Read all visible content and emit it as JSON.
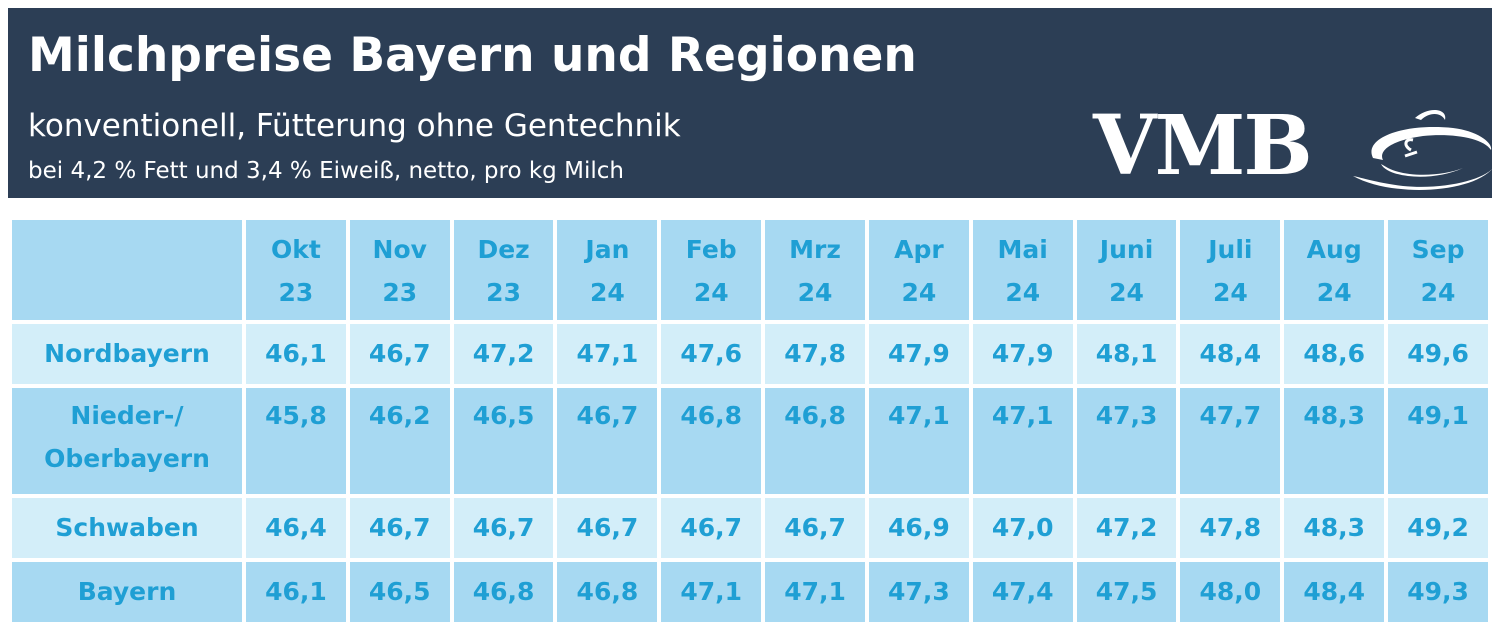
{
  "header": {
    "title": "Milchpreise Bayern und Regionen",
    "subtitle": "konventionell, Fütterung ohne Gentechnik",
    "note": "bei 4,2 % Fett und 3,4 % Eiweiß, netto, pro kg Milch",
    "logo_text": "VMB",
    "background_color": "#2c3e55"
  },
  "chart_data": {
    "type": "table",
    "title": "Milchpreise Bayern und Regionen",
    "subtitle": "konventionell, Fütterung ohne Gentechnik",
    "columns": [
      {
        "month": "Okt",
        "year": "23"
      },
      {
        "month": "Nov",
        "year": "23"
      },
      {
        "month": "Dez",
        "year": "23"
      },
      {
        "month": "Jan",
        "year": "24"
      },
      {
        "month": "Feb",
        "year": "24"
      },
      {
        "month": "Mrz",
        "year": "24"
      },
      {
        "month": "Apr",
        "year": "24"
      },
      {
        "month": "Mai",
        "year": "24"
      },
      {
        "month": "Juni",
        "year": "24"
      },
      {
        "month": "Juli",
        "year": "24"
      },
      {
        "month": "Aug",
        "year": "24"
      },
      {
        "month": "Sep",
        "year": "24"
      }
    ],
    "rows": [
      {
        "label_lines": [
          "Nordbayern"
        ],
        "values": [
          "46,1",
          "46,7",
          "47,2",
          "47,1",
          "47,6",
          "47,8",
          "47,9",
          "47,9",
          "48,1",
          "48,4",
          "48,6",
          "49,6"
        ]
      },
      {
        "label_lines": [
          "Nieder-/",
          "Oberbayern"
        ],
        "values": [
          "45,8",
          "46,2",
          "46,5",
          "46,7",
          "46,8",
          "46,8",
          "47,1",
          "47,1",
          "47,3",
          "47,7",
          "48,3",
          "49,1"
        ]
      },
      {
        "label_lines": [
          "Schwaben"
        ],
        "values": [
          "46,4",
          "46,7",
          "46,7",
          "46,7",
          "46,7",
          "46,7",
          "46,9",
          "47,0",
          "47,2",
          "47,8",
          "48,3",
          "49,2"
        ]
      },
      {
        "label_lines": [
          "Bayern"
        ],
        "values": [
          "46,1",
          "46,5",
          "46,8",
          "46,8",
          "47,1",
          "47,1",
          "47,3",
          "47,4",
          "47,5",
          "48,0",
          "48,4",
          "49,3"
        ]
      }
    ],
    "colors": {
      "text": "#1f9fd4",
      "cell_light": "#d3eef9",
      "cell_dark": "#a7d9f2"
    }
  }
}
